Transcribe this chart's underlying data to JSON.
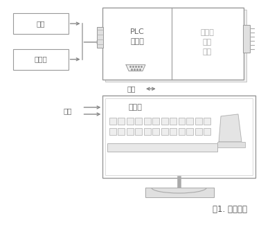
{
  "bg_color": "#ffffff",
  "line_color": "#aaaaaa",
  "box_edge": "#999999",
  "text_color": "#666666",
  "title": "图1. 控制框架",
  "label_yibiao": "仪表",
  "label_shuakaqi": "刷卡器",
  "label_plc": "PLC\n控制器",
  "label_switch": "开关量\n输入\n输出",
  "label_serial1": "串口",
  "label_serial2": "串口",
  "label_computer": "上位机",
  "font_size_main": 7.5,
  "font_size_caption": 8.5
}
